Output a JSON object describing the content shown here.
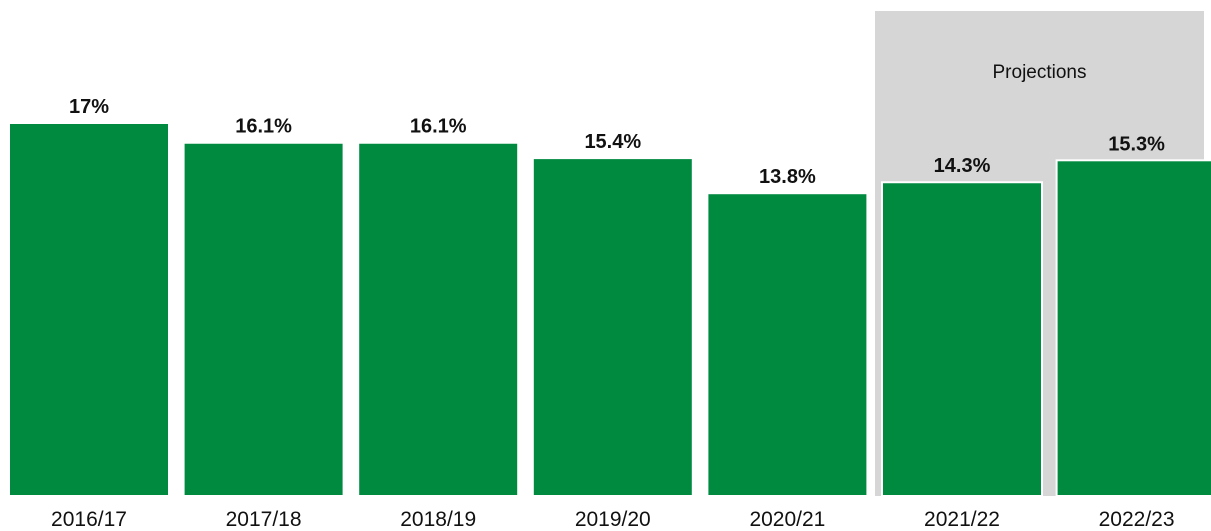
{
  "chart_data": {
    "type": "bar",
    "categories": [
      "2016/17",
      "2017/18",
      "2018/19",
      "2019/20",
      "2020/21",
      "2021/22",
      "2022/23"
    ],
    "values": [
      17,
      16.1,
      16.1,
      15.4,
      13.8,
      14.3,
      15.3
    ],
    "value_labels": [
      "17%",
      "16.1%",
      "16.1%",
      "15.4%",
      "13.8%",
      "14.3%",
      "15.3%"
    ],
    "unit": "%",
    "title": "",
    "xlabel": "",
    "ylabel": "",
    "ylim": [
      0,
      17
    ],
    "grid": false,
    "legend": "none",
    "projection_band": {
      "label": "Projections",
      "categories": [
        "2021/22",
        "2022/23"
      ]
    }
  },
  "colors": {
    "bar": "#008a40",
    "projection_band": "#d6d6d6",
    "text": "#111111",
    "background": "#ffffff"
  }
}
